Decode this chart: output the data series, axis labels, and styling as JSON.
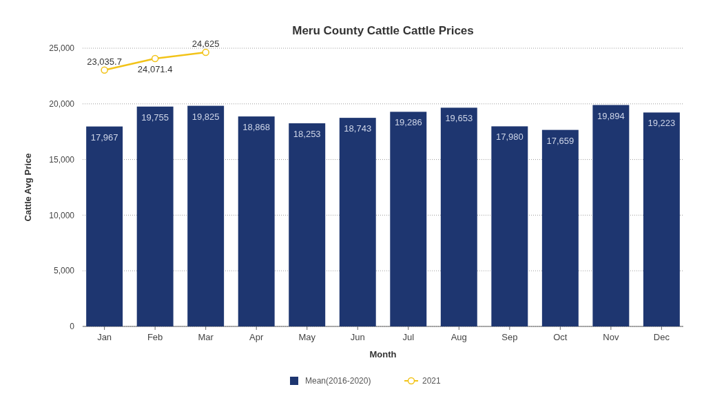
{
  "chart_data": {
    "type": "bar",
    "title": "Meru County Cattle Cattle Prices",
    "xlabel": "Month",
    "ylabel": "Cattle Avg Price",
    "categories": [
      "Jan",
      "Feb",
      "Mar",
      "Apr",
      "May",
      "Jun",
      "Jul",
      "Aug",
      "Sep",
      "Oct",
      "Nov",
      "Dec"
    ],
    "series": [
      {
        "name": "Mean(2016-2020)",
        "color": "#1e3670",
        "values": [
          17967,
          19755,
          19825,
          18868,
          18253,
          18743,
          19286,
          19653,
          17980,
          17659,
          19894,
          19223
        ],
        "value_labels": [
          "17,967",
          "19,755",
          "19,825",
          "18,868",
          "18,253",
          "18,743",
          "19,286",
          "19,653",
          "17,980",
          "17,659",
          "19,894",
          "19,223"
        ]
      },
      {
        "name": "2021",
        "type": "line",
        "color": "#f2c318",
        "marker": "circle",
        "values": [
          23035.7,
          24071.4,
          24625,
          null,
          null,
          null,
          null,
          null,
          null,
          null,
          null,
          null
        ],
        "value_labels": [
          "23,035.7",
          "24,071.4",
          "24,625",
          null,
          null,
          null,
          null,
          null,
          null,
          null,
          null,
          null
        ]
      }
    ],
    "ylim": [
      0,
      25000
    ],
    "yticks": [
      {
        "value": 0,
        "label": "0"
      },
      {
        "value": 5000,
        "label": "5,000"
      },
      {
        "value": 10000,
        "label": "10,000"
      },
      {
        "value": 15000,
        "label": "15,000"
      },
      {
        "value": 20000,
        "label": "20,000"
      },
      {
        "value": 25000,
        "label": "25,000"
      }
    ],
    "grid": "y",
    "legend": "bottom"
  }
}
